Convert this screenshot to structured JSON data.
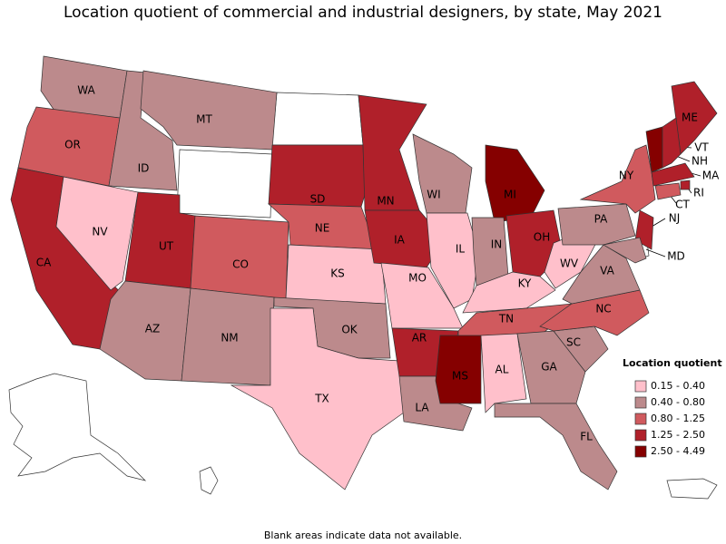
{
  "title": "Location quotient of commercial and industrial designers, by state, May 2021",
  "legend": {
    "title": "Location quotient",
    "items": [
      {
        "label": "0.15 - 0.40",
        "color": "#ffc0cb"
      },
      {
        "label": "0.40 - 0.80",
        "color": "#bc8a8c"
      },
      {
        "label": "0.80 - 1.25",
        "color": "#d05a5e"
      },
      {
        "label": "1.25 - 2.50",
        "color": "#b0202a"
      },
      {
        "label": "2.50 - 4.49",
        "color": "#850000"
      }
    ]
  },
  "states": [
    {
      "label": "WA",
      "color": "#bc8a8c"
    },
    {
      "label": "OR",
      "color": "#d05a5e"
    },
    {
      "label": "CA",
      "color": "#b0202a"
    },
    {
      "label": "NV",
      "color": "#ffc0cb"
    },
    {
      "label": "ID",
      "color": "#bc8a8c"
    },
    {
      "label": "MT",
      "color": "#bc8a8c"
    },
    {
      "label": "UT",
      "color": "#b0202a"
    },
    {
      "label": "CO",
      "color": "#d05a5e"
    },
    {
      "label": "AZ",
      "color": "#bc8a8c"
    },
    {
      "label": "NM",
      "color": "#bc8a8c"
    },
    {
      "label": "SD",
      "color": "#b0202a"
    },
    {
      "label": "NE",
      "color": "#d05a5e"
    },
    {
      "label": "KS",
      "color": "#ffc0cb"
    },
    {
      "label": "OK",
      "color": "#bc8a8c"
    },
    {
      "label": "TX",
      "color": "#ffc0cb"
    },
    {
      "label": "MN",
      "color": "#b0202a"
    },
    {
      "label": "IA",
      "color": "#b0202a"
    },
    {
      "label": "MO",
      "color": "#ffc0cb"
    },
    {
      "label": "WI",
      "color": "#bc8a8c"
    },
    {
      "label": "IL",
      "color": "#ffc0cb"
    },
    {
      "label": "MI",
      "color": "#850000"
    },
    {
      "label": "IN",
      "color": "#bc8a8c"
    },
    {
      "label": "OH",
      "color": "#b0202a"
    },
    {
      "label": "KY",
      "color": "#ffc0cb"
    },
    {
      "label": "WV",
      "color": "#ffc0cb"
    },
    {
      "label": "TN",
      "color": "#d05a5e"
    },
    {
      "label": "AR",
      "color": "#b0202a"
    },
    {
      "label": "LA",
      "color": "#bc8a8c"
    },
    {
      "label": "MS",
      "color": "#850000"
    },
    {
      "label": "AL",
      "color": "#ffc0cb"
    },
    {
      "label": "GA",
      "color": "#bc8a8c"
    },
    {
      "label": "FL",
      "color": "#bc8a8c"
    },
    {
      "label": "SC",
      "color": "#bc8a8c"
    },
    {
      "label": "NC",
      "color": "#d05a5e"
    },
    {
      "label": "VA",
      "color": "#bc8a8c"
    },
    {
      "label": "PA",
      "color": "#bc8a8c"
    },
    {
      "label": "NY",
      "color": "#d05a5e"
    },
    {
      "label": "ME",
      "color": "#b0202a"
    },
    {
      "label": "VT",
      "color": "#850000"
    },
    {
      "label": "NH",
      "color": "#b0202a"
    },
    {
      "label": "MA",
      "color": "#b0202a"
    },
    {
      "label": "RI",
      "color": "#b0202a"
    },
    {
      "label": "CT",
      "color": "#d05a5e"
    },
    {
      "label": "NJ",
      "color": "#b0202a"
    },
    {
      "label": "MD",
      "color": "#bc8a8c"
    }
  ],
  "footnote": "Blank areas indicate data not available."
}
